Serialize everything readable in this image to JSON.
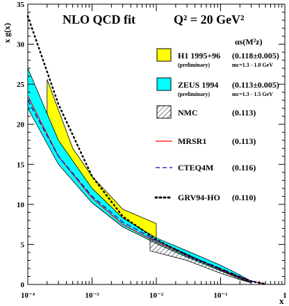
{
  "chart_data": {
    "type": "line",
    "title": "NLO QCD fit",
    "scale_label": "Q² = 20 GeV²",
    "xlabel": "x",
    "ylabel": "x g(x)",
    "xscale": "log",
    "xlim": [
      0.0001,
      1
    ],
    "ylim": [
      0,
      35
    ],
    "x_tick_labels": [
      "10⁻⁴",
      "10⁻³",
      "10⁻²",
      "10⁻¹",
      "1"
    ],
    "y_tick_labels": [
      "0",
      "5",
      "10",
      "15",
      "20",
      "25",
      "30",
      "35"
    ],
    "alphas_header": "αs(M²z)",
    "legend": [
      {
        "key": "h1",
        "label": "H1 1995+96",
        "sublabel": "(preliminary)",
        "value": "(0.118±0.005)",
        "note": "mc=1.3 - 1.8 GeV",
        "color": "#ffff00",
        "style": "band"
      },
      {
        "key": "zeus",
        "label": "ZEUS 1994",
        "sublabel": "(preliminary)",
        "value": "(0.113±0.005)",
        "note": "mc=1.3 - 1.5 GeV",
        "color": "#00ffff",
        "style": "band"
      },
      {
        "key": "nmc",
        "label": "NMC",
        "value": "(0.113)",
        "style": "hatched"
      },
      {
        "key": "mrsr1",
        "label": "MRSR1",
        "value": "(0.113)",
        "color": "#ff0000",
        "style": "solid"
      },
      {
        "key": "cteq4m",
        "label": "CTEQ4M",
        "value": "(0.116)",
        "color": "#0000cc",
        "style": "dashed"
      },
      {
        "key": "grv",
        "label": "GRV94-HO",
        "value": "(0.110)",
        "color": "#000000",
        "style": "dotted"
      }
    ],
    "series": [
      {
        "name": "MRSR1",
        "x": [
          0.0001,
          0.0003,
          0.001,
          0.003,
          0.01,
          0.03,
          0.1,
          0.2,
          0.3,
          0.5
        ],
        "y": [
          23.5,
          16.0,
          10.8,
          7.5,
          5.3,
          3.6,
          1.9,
          0.9,
          0.4,
          0.05
        ]
      },
      {
        "name": "CTEQ4M",
        "x": [
          0.0001,
          0.0003,
          0.001,
          0.003,
          0.01,
          0.03,
          0.1,
          0.2,
          0.3,
          0.5
        ],
        "y": [
          23.0,
          16.0,
          11.0,
          7.8,
          5.5,
          3.7,
          2.0,
          1.0,
          0.45,
          0.05
        ]
      },
      {
        "name": "GRV94-HO",
        "x": [
          0.0001,
          0.0003,
          0.001,
          0.003,
          0.01,
          0.03,
          0.1,
          0.2,
          0.3,
          0.5
        ],
        "y": [
          33.5,
          22.5,
          13.5,
          8.5,
          5.6,
          3.6,
          1.9,
          0.9,
          0.4,
          0.05
        ]
      }
    ],
    "bands": [
      {
        "name": "H1 1995+96",
        "x": [
          0.0002,
          0.0005,
          0.001,
          0.003,
          0.01
        ],
        "upper": [
          25.6,
          17.0,
          13.5,
          9.4,
          7.6
        ],
        "lower": [
          19.5,
          13.0,
          10.2,
          7.2,
          5.6
        ]
      },
      {
        "name": "ZEUS 1994",
        "x": [
          0.0001,
          0.0003,
          0.001,
          0.003,
          0.01,
          0.03,
          0.1,
          0.2,
          0.3
        ],
        "upper": [
          27.0,
          18.0,
          12.0,
          8.3,
          5.8,
          4.2,
          2.4,
          1.2,
          0.4
        ],
        "lower": [
          22.0,
          15.0,
          10.2,
          7.2,
          5.1,
          3.4,
          1.7,
          0.7,
          0.2
        ]
      },
      {
        "name": "NMC",
        "x": [
          0.008,
          0.01,
          0.03,
          0.1,
          0.2,
          0.3
        ],
        "upper": [
          5.8,
          5.5,
          3.8,
          1.8,
          0.8,
          0.3
        ],
        "lower": [
          4.2,
          4.0,
          3.0,
          1.4,
          0.6,
          0.2
        ]
      }
    ]
  }
}
